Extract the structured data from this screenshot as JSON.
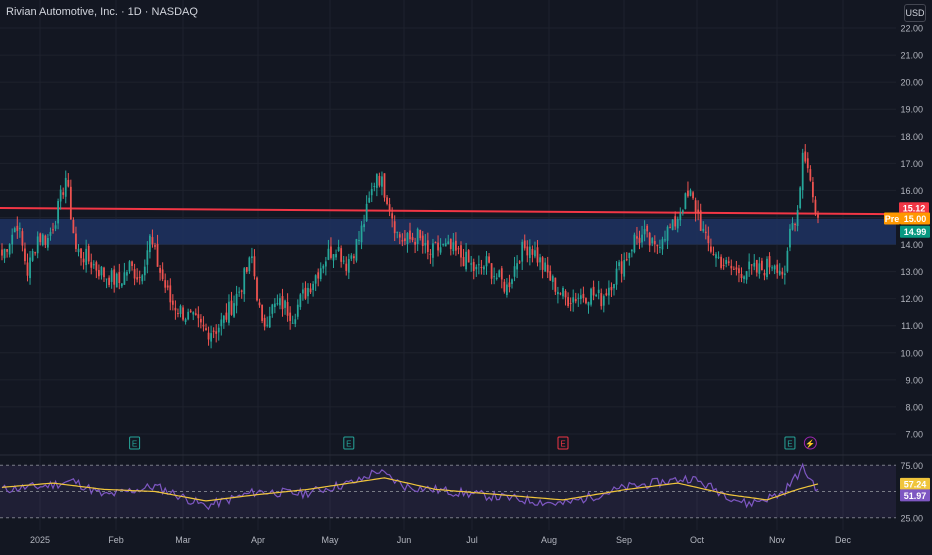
{
  "header": {
    "title": "Rivian Automotive, Inc. · 1D · NASDAQ",
    "currency": "USD"
  },
  "colors": {
    "bg": "#131722",
    "grid": "#1e222d",
    "up": "#26a69a",
    "down": "#ef5350",
    "resistance": "#f23645",
    "zone": "#1e3261",
    "rsi": "#7e57c2",
    "rsi_ma": "#f0c53b",
    "pre": "#ff9800"
  },
  "chart_data": [
    {
      "type": "candlestick",
      "title": "Rivian Automotive, Inc. · 1D · NASDAQ",
      "price_ticks": [
        7,
        8,
        9,
        10,
        11,
        12,
        13,
        14,
        15,
        16,
        17,
        18,
        19,
        20,
        21,
        22
      ],
      "ylim": [
        6.5,
        22.3
      ],
      "x_labels": [
        "2025",
        "Feb",
        "Mar",
        "Apr",
        "May",
        "Jun",
        "Jul",
        "Aug",
        "Sep",
        "Oct",
        "Nov",
        "Dec"
      ],
      "anchors": [
        {
          "d": 0,
          "p": 13.6
        },
        {
          "d": 6,
          "p": 14.8
        },
        {
          "d": 10,
          "p": 13.0
        },
        {
          "d": 14,
          "p": 14.3
        },
        {
          "d": 18,
          "p": 14.2
        },
        {
          "d": 22,
          "p": 15.3
        },
        {
          "d": 25,
          "p": 16.5
        },
        {
          "d": 29,
          "p": 13.8
        },
        {
          "d": 33,
          "p": 13.5
        },
        {
          "d": 40,
          "p": 12.9
        },
        {
          "d": 46,
          "p": 12.6
        },
        {
          "d": 50,
          "p": 13.2
        },
        {
          "d": 54,
          "p": 12.8
        },
        {
          "d": 58,
          "p": 14.2
        },
        {
          "d": 62,
          "p": 13.0
        },
        {
          "d": 66,
          "p": 11.9
        },
        {
          "d": 72,
          "p": 11.4
        },
        {
          "d": 76,
          "p": 11.1
        },
        {
          "d": 80,
          "p": 10.8
        },
        {
          "d": 84,
          "p": 10.9
        },
        {
          "d": 87,
          "p": 11.2
        },
        {
          "d": 93,
          "p": 12.3
        },
        {
          "d": 98,
          "p": 13.5
        },
        {
          "d": 102,
          "p": 10.9
        },
        {
          "d": 105,
          "p": 11.6
        },
        {
          "d": 110,
          "p": 11.8
        },
        {
          "d": 114,
          "p": 11.4
        },
        {
          "d": 118,
          "p": 12.1
        },
        {
          "d": 122,
          "p": 12.7
        },
        {
          "d": 126,
          "p": 13.4
        },
        {
          "d": 131,
          "p": 14.0
        },
        {
          "d": 135,
          "p": 13.3
        },
        {
          "d": 140,
          "p": 14.2
        },
        {
          "d": 143,
          "p": 15.2
        },
        {
          "d": 147,
          "p": 16.7
        },
        {
          "d": 151,
          "p": 15.8
        },
        {
          "d": 155,
          "p": 14.4
        },
        {
          "d": 158,
          "p": 14.1
        },
        {
          "d": 163,
          "p": 14.3
        },
        {
          "d": 167,
          "p": 13.6
        },
        {
          "d": 172,
          "p": 13.9
        },
        {
          "d": 176,
          "p": 13.8
        },
        {
          "d": 181,
          "p": 13.5
        },
        {
          "d": 186,
          "p": 13.0
        },
        {
          "d": 190,
          "p": 13.3
        },
        {
          "d": 194,
          "p": 12.8
        },
        {
          "d": 198,
          "p": 12.4
        },
        {
          "d": 203,
          "p": 13.7
        },
        {
          "d": 207,
          "p": 14.0
        },
        {
          "d": 212,
          "p": 13.2
        },
        {
          "d": 216,
          "p": 12.6
        },
        {
          "d": 221,
          "p": 12.0
        },
        {
          "d": 226,
          "p": 12.1
        },
        {
          "d": 231,
          "p": 12.2
        },
        {
          "d": 235,
          "p": 12.0
        },
        {
          "d": 240,
          "p": 12.8
        },
        {
          "d": 244,
          "p": 13.4
        },
        {
          "d": 248,
          "p": 14.2
        },
        {
          "d": 252,
          "p": 14.3
        },
        {
          "d": 256,
          "p": 13.8
        },
        {
          "d": 259,
          "p": 14.4
        },
        {
          "d": 263,
          "p": 14.6
        },
        {
          "d": 267,
          "p": 15.5
        },
        {
          "d": 270,
          "p": 15.8
        },
        {
          "d": 273,
          "p": 15.1
        },
        {
          "d": 276,
          "p": 14.1
        },
        {
          "d": 280,
          "p": 13.6
        },
        {
          "d": 284,
          "p": 13.2
        },
        {
          "d": 288,
          "p": 13.0
        },
        {
          "d": 292,
          "p": 13.1
        },
        {
          "d": 296,
          "p": 13.0
        },
        {
          "d": 300,
          "p": 13.2
        },
        {
          "d": 303,
          "p": 13.4
        },
        {
          "d": 306,
          "p": 13.0
        },
        {
          "d": 307,
          "p": 12.6
        },
        {
          "d": 309,
          "p": 14.5
        },
        {
          "d": 312,
          "p": 15.3
        },
        {
          "d": 314,
          "p": 17.4
        },
        {
          "d": 316,
          "p": 17.0
        },
        {
          "d": 318,
          "p": 15.7
        },
        {
          "d": 320,
          "p": 14.99
        }
      ],
      "horizontal_line": {
        "value": 15.12,
        "color": "#f23645"
      },
      "zone": {
        "from": 14.0,
        "to": 14.95
      },
      "price_labels": [
        {
          "text": "15.12",
          "value": 15.12,
          "color": "#f23645"
        },
        {
          "text": "Pre",
          "value": 15.0,
          "color": "#ff9800"
        },
        {
          "text": "15.00",
          "value": 15.0,
          "color": "#ff9800"
        },
        {
          "text": "14.99",
          "value": 14.99,
          "color": "#089981"
        }
      ],
      "earnings_markers": [
        {
          "label": "E",
          "date_index": 52,
          "color": "#26a69a"
        },
        {
          "label": "E",
          "date_index": 136,
          "color": "#26a69a"
        },
        {
          "label": "E",
          "date_index": 220,
          "color": "#f23645"
        },
        {
          "label": "E",
          "date_index": 309,
          "color": "#26a69a"
        }
      ],
      "event_marker": {
        "label": "⚡",
        "date_index": 317
      }
    },
    {
      "type": "line",
      "title": "",
      "ticks": [
        25,
        50,
        75
      ],
      "ylim": [
        20,
        80
      ],
      "series": [
        {
          "anchors": [
            {
              "d": 0,
              "v": 52
            },
            {
              "d": 16,
              "v": 55
            },
            {
              "d": 28,
              "v": 60
            },
            {
              "d": 40,
              "v": 46
            },
            {
              "d": 60,
              "v": 55
            },
            {
              "d": 80,
              "v": 36
            },
            {
              "d": 100,
              "v": 50
            },
            {
              "d": 118,
              "v": 48
            },
            {
              "d": 140,
              "v": 60
            },
            {
              "d": 147,
              "v": 70
            },
            {
              "d": 158,
              "v": 55
            },
            {
              "d": 190,
              "v": 46
            },
            {
              "d": 220,
              "v": 38
            },
            {
              "d": 245,
              "v": 54
            },
            {
              "d": 270,
              "v": 63
            },
            {
              "d": 292,
              "v": 38
            },
            {
              "d": 306,
              "v": 48
            },
            {
              "d": 314,
              "v": 72
            },
            {
              "d": 320,
              "v": 51.97
            }
          ]
        },
        {
          "anchors": [
            {
              "d": 0,
              "v": 54
            },
            {
              "d": 20,
              "v": 58
            },
            {
              "d": 40,
              "v": 52
            },
            {
              "d": 60,
              "v": 50
            },
            {
              "d": 80,
              "v": 41
            },
            {
              "d": 100,
              "v": 47
            },
            {
              "d": 120,
              "v": 52
            },
            {
              "d": 150,
              "v": 63
            },
            {
              "d": 170,
              "v": 52
            },
            {
              "d": 195,
              "v": 47
            },
            {
              "d": 220,
              "v": 42
            },
            {
              "d": 245,
              "v": 52
            },
            {
              "d": 265,
              "v": 58
            },
            {
              "d": 285,
              "v": 47
            },
            {
              "d": 300,
              "v": 42
            },
            {
              "d": 312,
              "v": 52
            },
            {
              "d": 320,
              "v": 57.24
            }
          ]
        }
      ],
      "labels": [
        {
          "text": "57.24",
          "value": 57.24,
          "color": "#f0c53b"
        },
        {
          "text": "51.97",
          "value": 51.97,
          "color": "#7e57c2"
        }
      ],
      "tick_labels": [
        "75.00",
        "25.00"
      ]
    }
  ]
}
